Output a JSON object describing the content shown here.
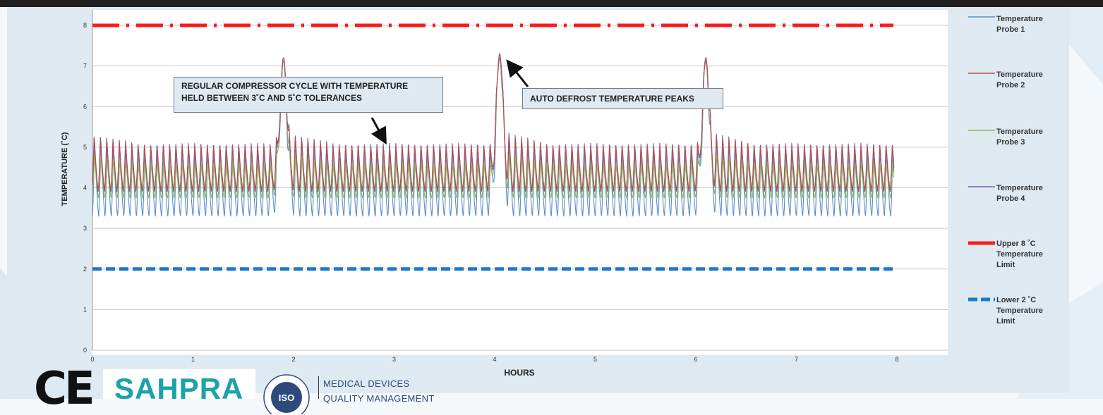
{
  "colors": {
    "probe1": "#5b8fc9",
    "probe2": "#b5504b",
    "probe3": "#8fb75a",
    "probe4": "#7b5ba6",
    "upper_limit": "#ff1a1a",
    "lower_limit": "#1f78c8",
    "arrow": "#111111"
  },
  "chart_data": {
    "type": "line",
    "xlabel": "HOURS",
    "ylabel": "TEMPERATURE (˚C)",
    "xlim": [
      0,
      8
    ],
    "ylim": [
      0,
      8
    ],
    "x_ticks": [
      "0",
      "1",
      "2",
      "3",
      "4",
      "5",
      "6",
      "7",
      "8"
    ],
    "y_ticks": [
      "0",
      "1",
      "2",
      "3",
      "4",
      "5",
      "6",
      "7",
      "8"
    ],
    "grid": "horizontal",
    "legend_position": "right",
    "compressor_cycle": {
      "cycle_length_hours": 0.0625,
      "probe1_range": [
        3.3,
        4.95
      ],
      "probe2_range": [
        3.95,
        5.05
      ],
      "probe3_range": [
        3.75,
        4.6
      ],
      "probe4_range": [
        3.9,
        5.1
      ]
    },
    "defrost_peaks": [
      {
        "x": 1.9,
        "y": 7.2
      },
      {
        "x": 4.05,
        "y": 7.3
      },
      {
        "x": 6.1,
        "y": 7.2
      }
    ],
    "series": [
      {
        "name": "Temperature Probe 1",
        "color_key": "probe1",
        "style": "solid"
      },
      {
        "name": "Temperature Probe 2",
        "color_key": "probe2",
        "style": "solid"
      },
      {
        "name": "Temperature Probe 3",
        "color_key": "probe3",
        "style": "solid"
      },
      {
        "name": "Temperature Probe 4",
        "color_key": "probe4",
        "style": "solid"
      },
      {
        "name": "Upper 8 ˚C Temperature Limit",
        "color_key": "upper_limit",
        "style": "dash-dot",
        "y": 8
      },
      {
        "name": "Lower 2 ˚C Temperature Limit",
        "color_key": "lower_limit",
        "style": "dashed",
        "y": 2
      }
    ],
    "annotations": [
      {
        "text_line1": "REGULAR COMPRESSOR CYCLE WITH TEMPERATURE",
        "text_line2": "HELD BETWEEN 3˚C AND 5˚C TOLERANCES"
      },
      {
        "text": "AUTO DEFROST TEMPERATURE PEAKS"
      }
    ]
  },
  "legend": [
    {
      "line1": "Temperature",
      "line2": "Probe 1",
      "line3": ""
    },
    {
      "line1": "Temperature",
      "line2": "Probe 2",
      "line3": ""
    },
    {
      "line1": "Temperature",
      "line2": "Probe 3",
      "line3": ""
    },
    {
      "line1": "Temperature",
      "line2": "Probe 4",
      "line3": ""
    },
    {
      "line1": "Upper 8 ˚C",
      "line2": "Temperature",
      "line3": "Limit"
    },
    {
      "line1": "Lower 2 ˚C",
      "line2": "Temperature",
      "line3": "Limit"
    }
  ],
  "footer": {
    "ce_mark": "CE",
    "sahpra": "SAHPRA",
    "iso_seal_text": "MEDICAL DEVICES",
    "iso_seal_core": "ISO",
    "md_label": "MEDICAL DEVICES",
    "qm_label": "QUALITY MANAGEMENT"
  }
}
